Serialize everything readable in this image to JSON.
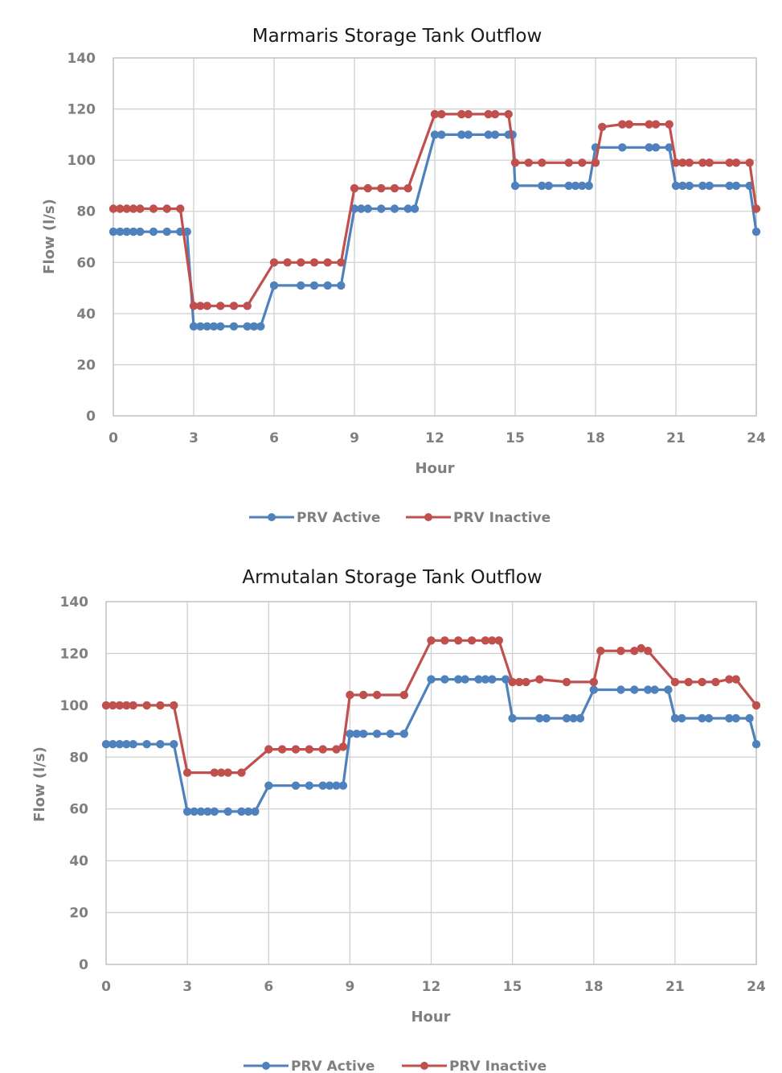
{
  "chart_data": [
    {
      "type": "line",
      "title": "Marmaris Storage Tank Outflow",
      "xlabel": "Hour",
      "ylabel": "Flow (l/s)",
      "xlim": [
        0,
        24
      ],
      "ylim": [
        0,
        140
      ],
      "xticks": [
        0,
        3,
        6,
        9,
        12,
        15,
        18,
        21,
        24
      ],
      "yticks": [
        0,
        20,
        40,
        60,
        80,
        100,
        120,
        140
      ],
      "grid": true,
      "legend": "bottom",
      "series": [
        {
          "name": "PRV Active",
          "color": "#4f81bd",
          "x": [
            0,
            0.25,
            0.5,
            0.75,
            1,
            1.5,
            2,
            2.5,
            2.75,
            3,
            3.25,
            3.5,
            3.75,
            4,
            4.5,
            5,
            5.25,
            5.5,
            6,
            7,
            7.5,
            8,
            8.5,
            9,
            9.25,
            9.5,
            10,
            10.5,
            11,
            11.25,
            12,
            12.25,
            13,
            13.25,
            14,
            14.25,
            14.75,
            14.9,
            15,
            16,
            16.25,
            17,
            17.25,
            17.5,
            17.75,
            18,
            19,
            20,
            20.25,
            20.75,
            21,
            21.25,
            21.5,
            22,
            22.25,
            23,
            23.25,
            23.75,
            24
          ],
          "y": [
            72,
            72,
            72,
            72,
            72,
            72,
            72,
            72,
            72,
            35,
            35,
            35,
            35,
            35,
            35,
            35,
            35,
            35,
            51,
            51,
            51,
            51,
            51,
            81,
            81,
            81,
            81,
            81,
            81,
            81,
            110,
            110,
            110,
            110,
            110,
            110,
            110,
            110,
            90,
            90,
            90,
            90,
            90,
            90,
            90,
            105,
            105,
            105,
            105,
            105,
            90,
            90,
            90,
            90,
            90,
            90,
            90,
            90,
            72
          ]
        },
        {
          "name": "PRV Inactive",
          "color": "#c0504d",
          "x": [
            0,
            0.25,
            0.5,
            0.75,
            1,
            1.5,
            2,
            2.5,
            3,
            3.25,
            3.5,
            4,
            4.5,
            5,
            6,
            6.5,
            7,
            7.5,
            8,
            8.5,
            9,
            9.5,
            10,
            10.5,
            11,
            12,
            12.25,
            13,
            13.25,
            14,
            14.25,
            14.75,
            15,
            15.5,
            16,
            17,
            17.5,
            18,
            18.25,
            19,
            19.25,
            20,
            20.25,
            20.75,
            21,
            21.25,
            21.5,
            22,
            22.25,
            23,
            23.25,
            23.75,
            24
          ],
          "y": [
            81,
            81,
            81,
            81,
            81,
            81,
            81,
            81,
            43,
            43,
            43,
            43,
            43,
            43,
            60,
            60,
            60,
            60,
            60,
            60,
            89,
            89,
            89,
            89,
            89,
            118,
            118,
            118,
            118,
            118,
            118,
            118,
            99,
            99,
            99,
            99,
            99,
            99,
            113,
            114,
            114,
            114,
            114,
            114,
            99,
            99,
            99,
            99,
            99,
            99,
            99,
            99,
            81
          ]
        }
      ]
    },
    {
      "type": "line",
      "title": "Armutalan Storage Tank Outflow",
      "xlabel": "Hour",
      "ylabel": "Flow (l/s)",
      "xlim": [
        0,
        24
      ],
      "ylim": [
        0,
        140
      ],
      "xticks": [
        0,
        3,
        6,
        9,
        12,
        15,
        18,
        21,
        24
      ],
      "yticks": [
        0,
        20,
        40,
        60,
        80,
        100,
        120,
        140
      ],
      "grid": true,
      "legend": "bottom",
      "series": [
        {
          "name": "PRV Active",
          "color": "#4f81bd",
          "x": [
            0,
            0.25,
            0.5,
            0.75,
            1,
            1.5,
            2,
            2.5,
            3,
            3.25,
            3.5,
            3.75,
            4,
            4.5,
            5,
            5.25,
            5.5,
            6,
            7,
            7.5,
            8,
            8.25,
            8.5,
            8.75,
            9,
            9.25,
            9.5,
            10,
            10.5,
            11,
            12,
            12.5,
            13,
            13.25,
            13.75,
            14,
            14.25,
            14.75,
            15,
            16,
            16.25,
            17,
            17.25,
            17.5,
            18,
            19,
            19.5,
            20,
            20.25,
            20.75,
            21,
            21.25,
            22,
            22.25,
            23,
            23.25,
            23.75,
            24
          ],
          "y": [
            85,
            85,
            85,
            85,
            85,
            85,
            85,
            85,
            59,
            59,
            59,
            59,
            59,
            59,
            59,
            59,
            59,
            69,
            69,
            69,
            69,
            69,
            69,
            69,
            89,
            89,
            89,
            89,
            89,
            89,
            110,
            110,
            110,
            110,
            110,
            110,
            110,
            110,
            95,
            95,
            95,
            95,
            95,
            95,
            106,
            106,
            106,
            106,
            106,
            106,
            95,
            95,
            95,
            95,
            95,
            95,
            95,
            85
          ]
        },
        {
          "name": "PRV Inactive",
          "color": "#c0504d",
          "x": [
            0,
            0.25,
            0.5,
            0.75,
            1,
            1.5,
            2,
            2.5,
            3,
            4,
            4.25,
            4.5,
            5,
            6,
            6.5,
            7,
            7.5,
            8,
            8.5,
            8.75,
            9,
            9.5,
            10,
            11,
            12,
            12.5,
            13,
            13.5,
            14,
            14.25,
            14.5,
            15,
            15.25,
            15.5,
            16,
            17,
            18,
            18.25,
            19,
            19.5,
            19.75,
            20,
            21,
            21.5,
            22,
            22.5,
            23,
            23.25,
            24
          ],
          "y": [
            100,
            100,
            100,
            100,
            100,
            100,
            100,
            100,
            74,
            74,
            74,
            74,
            74,
            83,
            83,
            83,
            83,
            83,
            83,
            84,
            104,
            104,
            104,
            104,
            125,
            125,
            125,
            125,
            125,
            125,
            125,
            109,
            109,
            109,
            110,
            109,
            109,
            121,
            121,
            121,
            122,
            121,
            109,
            109,
            109,
            109,
            110,
            110,
            100
          ]
        }
      ]
    }
  ]
}
